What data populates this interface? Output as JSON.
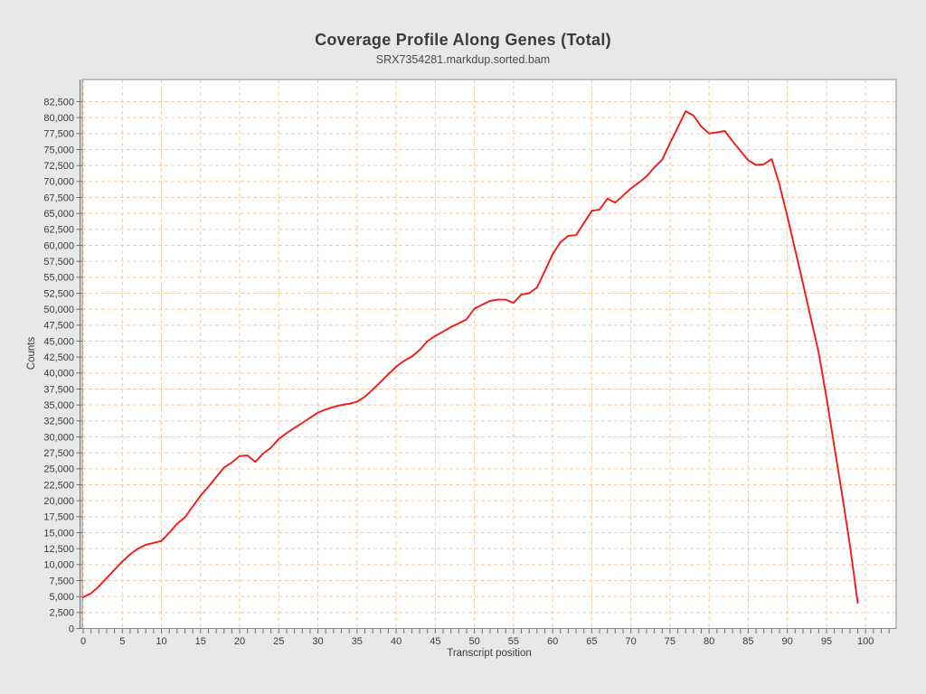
{
  "chart_data": {
    "type": "line",
    "title": "Coverage Profile Along Genes (Total)",
    "subtitle": "SRX7354281.markdup.sorted.bam",
    "xlabel": "Transcript position",
    "ylabel": "Counts",
    "grid": true,
    "legend_position": "none",
    "x_ticks": [
      0,
      5,
      10,
      15,
      20,
      25,
      30,
      35,
      40,
      45,
      50,
      55,
      60,
      65,
      70,
      75,
      80,
      85,
      90,
      95,
      100
    ],
    "y_ticks": [
      0,
      2500,
      5000,
      7500,
      10000,
      12500,
      15000,
      17500,
      20000,
      22500,
      25000,
      27500,
      30000,
      32500,
      35000,
      37500,
      40000,
      42500,
      45000,
      47500,
      50000,
      52500,
      55000,
      57500,
      60000,
      62500,
      65000,
      67500,
      70000,
      72500,
      75000,
      77500,
      80000,
      82500
    ],
    "xlim": [
      0,
      104
    ],
    "ylim": [
      0,
      86000
    ],
    "x_start": 0,
    "x_step": 1,
    "series": [
      {
        "name": "SRX7354281.markdup.sorted.bam",
        "color": "#f51818",
        "values": [
          4900,
          5500,
          6600,
          7900,
          9200,
          10500,
          11600,
          12500,
          13100,
          13400,
          13700,
          15000,
          16400,
          17400,
          19100,
          20800,
          22200,
          23700,
          25200,
          26000,
          27000,
          27100,
          26100,
          27400,
          28300,
          29700,
          30600,
          31400,
          32200,
          33000,
          33800,
          34300,
          34700,
          35000,
          35200,
          35500,
          36300,
          37400,
          38600,
          39800,
          41000,
          41900,
          42600,
          43600,
          45000,
          45800,
          46500,
          47200,
          47800,
          48400,
          50100,
          50700,
          51300,
          51500,
          51500,
          51000,
          52300,
          52500,
          53400,
          56000,
          58600,
          60500,
          61500,
          61600,
          63500,
          65400,
          65600,
          67300,
          66700,
          67800,
          68900,
          69800,
          70800,
          72200,
          73400,
          76000,
          78500,
          81000,
          80300,
          78600,
          77500,
          77700,
          77900,
          76300,
          74800,
          73300,
          72600,
          72700,
          73500,
          69500,
          64500,
          59300,
          54000,
          48600,
          43200,
          36200,
          28500,
          21000,
          13000,
          4000
        ]
      }
    ],
    "colors": {
      "page_background": "#e8e8e8",
      "plot_background": "#ffffff",
      "gridline": "#f5c9a2",
      "plot_border": "#8c8c8c",
      "axis_line": "#6e6e6e",
      "tick_label": "#3a3a3a",
      "line": "#f51818"
    }
  }
}
